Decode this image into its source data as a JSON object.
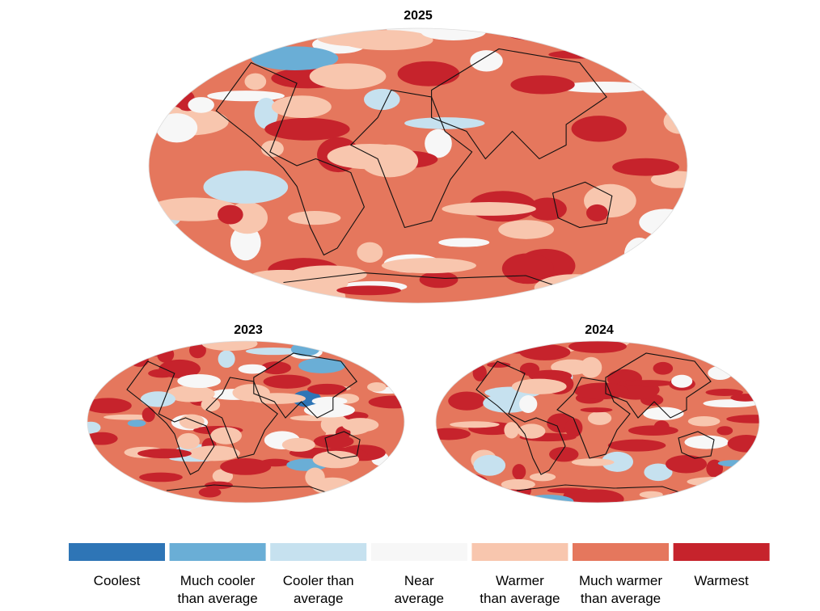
{
  "maps": [
    {
      "title": "2025"
    },
    {
      "title": "2023"
    },
    {
      "title": "2024"
    }
  ],
  "legend": [
    {
      "lines": [
        "Coolest"
      ],
      "color": "#2e75b6"
    },
    {
      "lines": [
        "Much cooler",
        "than average"
      ],
      "color": "#6aaed6"
    },
    {
      "lines": [
        "Cooler than",
        "average"
      ],
      "color": "#c6e1ef"
    },
    {
      "lines": [
        "Near",
        "average"
      ],
      "color": "#f7f7f7"
    },
    {
      "lines": [
        "Warmer",
        "than average"
      ],
      "color": "#f8c6ae"
    },
    {
      "lines": [
        "Much warmer",
        "than average"
      ],
      "color": "#e5775d"
    },
    {
      "lines": [
        "Warmest"
      ],
      "color": "#c6232c"
    }
  ]
}
